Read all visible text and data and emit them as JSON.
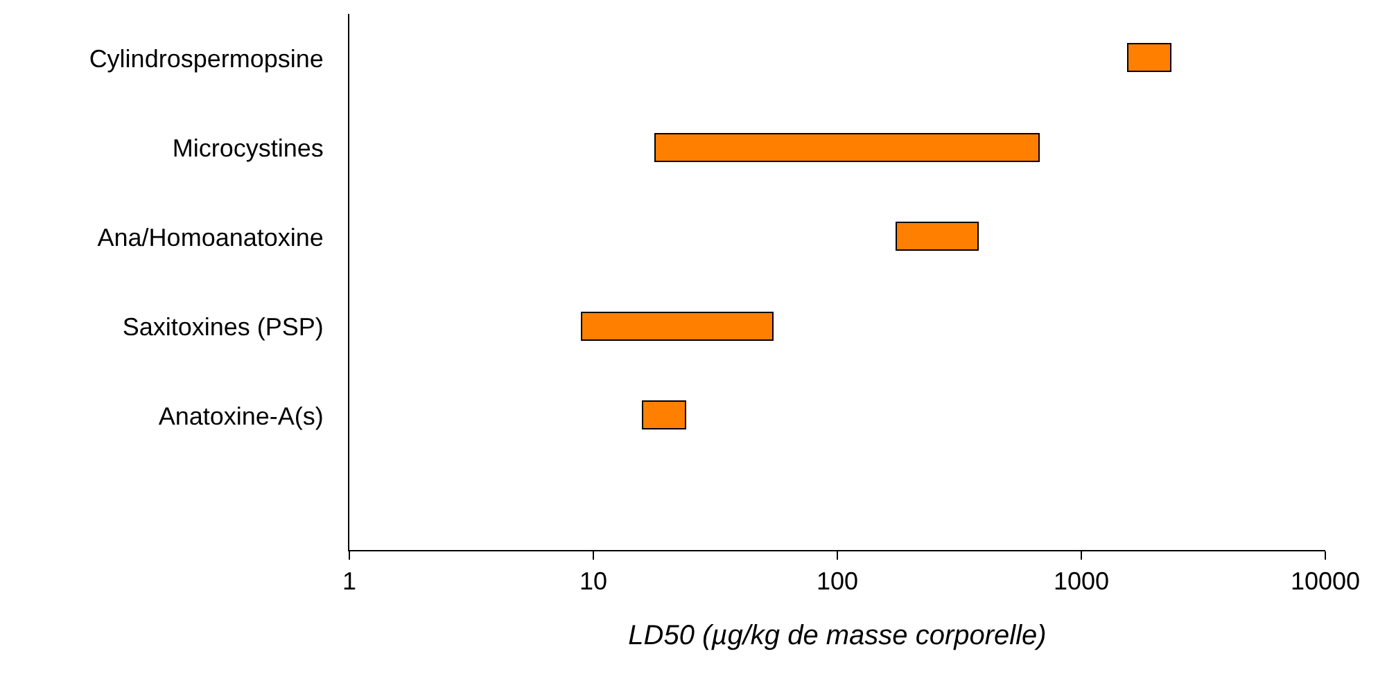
{
  "chart_data": {
    "type": "bar",
    "orientation": "horizontal",
    "log": "x",
    "xlabel": "LD50 (µg/kg de masse corporelle)",
    "categories": [
      "Cylindrospermopsine",
      "Microcystines",
      "Ana/Homoanatoxine",
      "Saxitoxines (PSP)",
      "Anatoxine-A(s)"
    ],
    "base": [
      1550,
      18,
      175,
      9,
      16
    ],
    "values": [
      800,
      657,
      205,
      46,
      8
    ],
    "color": "#ff8000",
    "xlim": [
      1,
      10000
    ],
    "xticks": [
      1,
      10,
      100,
      1000,
      10000
    ],
    "legend": false
  }
}
